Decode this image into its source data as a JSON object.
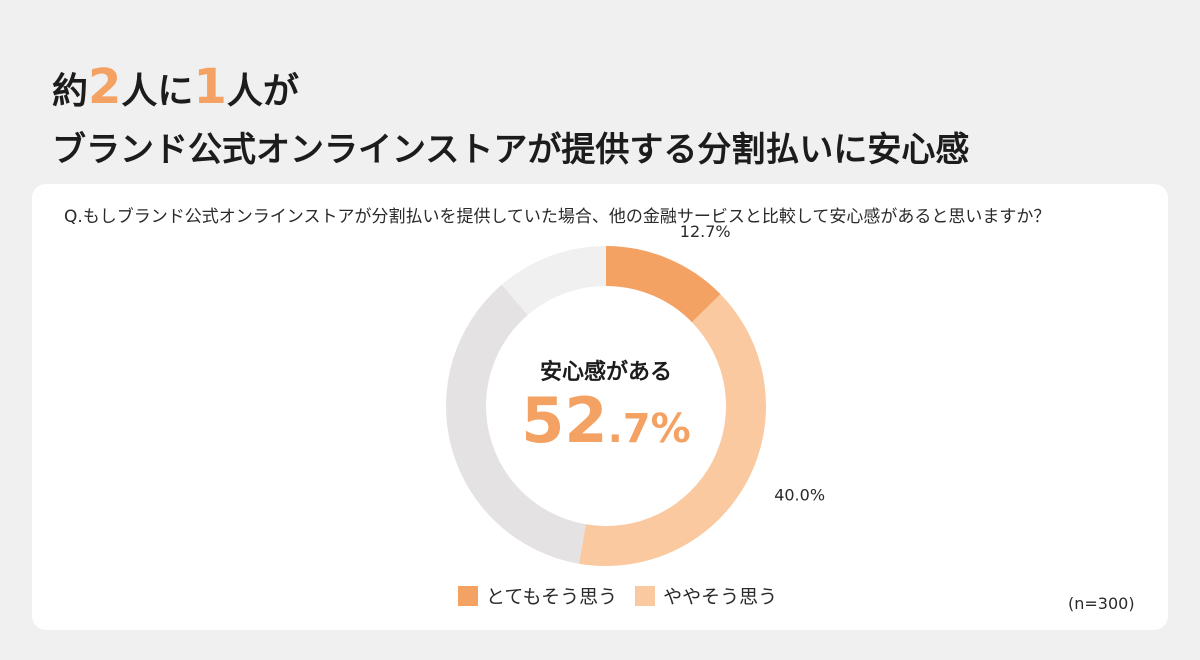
{
  "headline": {
    "line1_pre": "約",
    "line1_num1": "2",
    "line1_mid": "人に",
    "line1_num2": "1",
    "line1_post": "人が",
    "line2": "ブランド公式オンラインストアが提供する分割払いに安心感"
  },
  "question": "Q.もしブランド公式オンラインストアが分割払いを提供していた場合、他の金融サービスと比較して安心感があると思いますか？",
  "center": {
    "label": "安心感がある",
    "value_int": "52",
    "value_dec": ".7%"
  },
  "legend": {
    "items": [
      {
        "label": "とてもそう思う",
        "color": "#f4a264"
      },
      {
        "label": "ややそう思う",
        "color": "#fbc9a0"
      }
    ]
  },
  "sample_size": "(n=300)",
  "chart_data": {
    "type": "pie",
    "donut": true,
    "title": "",
    "categories": [
      "とてもそう思う",
      "ややそう思う",
      "",
      ""
    ],
    "values": [
      12.7,
      40.0,
      36.0,
      11.3
    ],
    "colors": [
      "#f4a264",
      "#fbc9a0",
      "#e4e2e3",
      "#f1f0f0"
    ],
    "data_labels": [
      "12.7%",
      "40.0%",
      "",
      ""
    ],
    "legend_position": "bottom"
  }
}
